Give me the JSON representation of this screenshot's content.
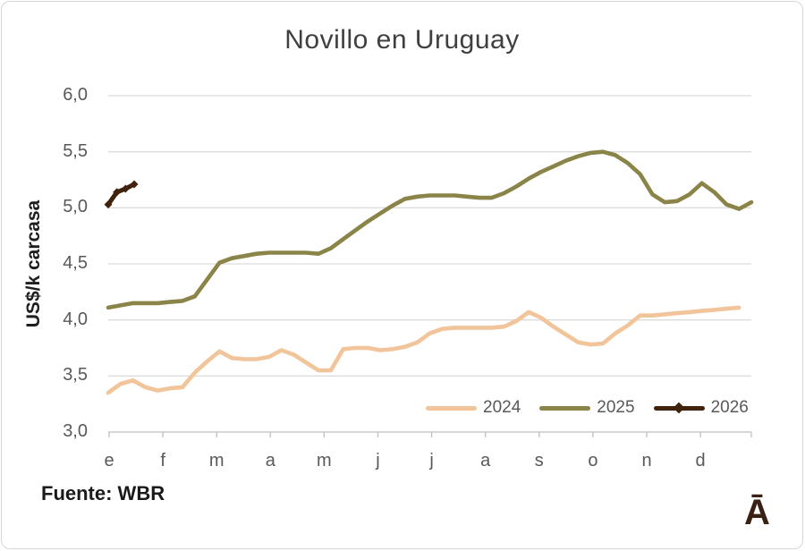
{
  "chart_data": {
    "type": "line",
    "title": "Novillo en Uruguay",
    "ylabel": "US$/k carcasa",
    "ylim": [
      3.0,
      6.0
    ],
    "yticks": [
      6.0,
      5.5,
      5.0,
      4.5,
      4.0,
      3.5,
      3.0
    ],
    "ytick_labels": [
      "6,0",
      "5,5",
      "5,0",
      "4,5",
      "4,0",
      "3,5",
      "3,0"
    ],
    "xtick_labels": [
      "e",
      "f",
      "m",
      "a",
      "m",
      "j",
      "j",
      "a",
      "s",
      "o",
      "n",
      "d"
    ],
    "x_resolution": "weekly",
    "weeks_per_year": 53,
    "grid": "horizontal",
    "legend": {
      "position": "inside-bottom-right",
      "entries": [
        "2024",
        "2025",
        "2026"
      ]
    },
    "source": "Fuente: WBR",
    "series": [
      {
        "name": "2024",
        "color": "#F2C49A",
        "marker": "none",
        "values": [
          3.35,
          3.43,
          3.46,
          3.4,
          3.37,
          3.39,
          3.4,
          3.53,
          3.63,
          3.72,
          3.66,
          3.65,
          3.65,
          3.67,
          3.73,
          3.69,
          3.62,
          3.55,
          3.55,
          3.74,
          3.75,
          3.75,
          3.73,
          3.74,
          3.76,
          3.8,
          3.88,
          3.92,
          3.93,
          3.93,
          3.93,
          3.93,
          3.94,
          3.99,
          4.07,
          4.02,
          3.94,
          3.87,
          3.8,
          3.78,
          3.79,
          3.88,
          3.95,
          4.04,
          4.04,
          4.05,
          4.06,
          4.07,
          4.08,
          4.09,
          4.1,
          4.11
        ]
      },
      {
        "name": "2025",
        "color": "#8B8448",
        "marker": "none",
        "values": [
          4.11,
          4.13,
          4.15,
          4.15,
          4.15,
          4.16,
          4.17,
          4.21,
          4.36,
          4.51,
          4.55,
          4.57,
          4.59,
          4.6,
          4.6,
          4.6,
          4.6,
          4.59,
          4.64,
          4.72,
          4.8,
          4.88,
          4.95,
          5.02,
          5.08,
          5.1,
          5.11,
          5.11,
          5.11,
          5.1,
          5.09,
          5.09,
          5.13,
          5.19,
          5.26,
          5.32,
          5.37,
          5.42,
          5.46,
          5.49,
          5.5,
          5.47,
          5.4,
          5.3,
          5.12,
          5.05,
          5.06,
          5.12,
          5.22,
          5.14,
          5.03,
          4.99,
          5.05
        ]
      },
      {
        "name": "2026",
        "color": "#40220D",
        "marker": "diamond",
        "x_weeks": [
          0,
          0.7,
          1.4,
          2.1
        ],
        "values": [
          5.03,
          5.14,
          5.17,
          5.21
        ]
      }
    ]
  },
  "styles": {
    "gridline_color": "#DCDCDC",
    "axis_color": "#BFBFBF",
    "tick_label_color": "#595959",
    "title_color": "#3F3F3F"
  },
  "branding": {
    "logo_text": "Ā",
    "logo_color": "#3A2113"
  }
}
